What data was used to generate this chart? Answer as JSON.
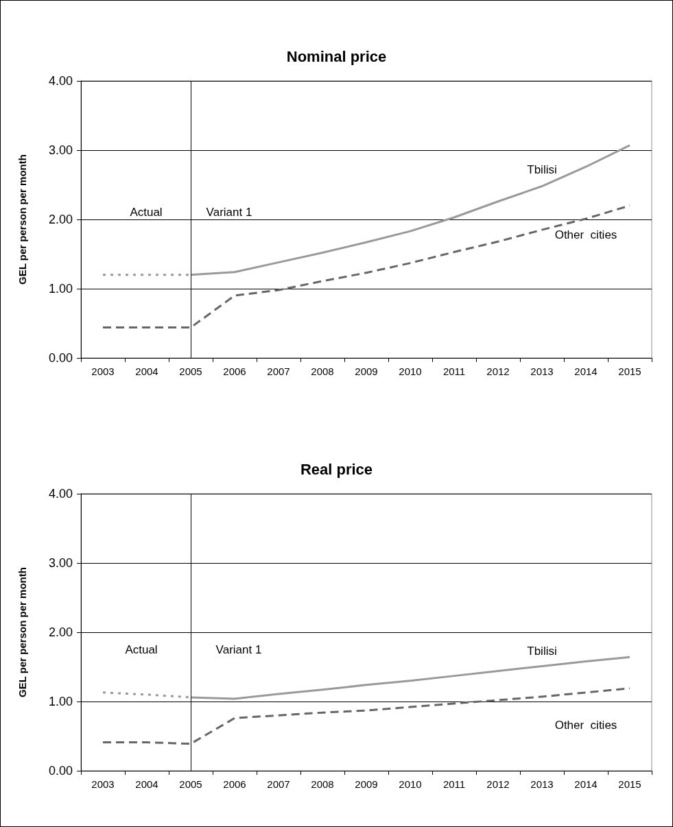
{
  "chart_data": [
    {
      "type": "line",
      "title": "Nominal price",
      "ylabel": "GEL per person per month",
      "categories": [
        "2003",
        "2004",
        "2005",
        "2006",
        "2007",
        "2008",
        "2009",
        "2010",
        "2011",
        "2012",
        "2013",
        "2014",
        "2015"
      ],
      "series": [
        {
          "color": "#999999",
          "line_style": "dotted",
          "values": [
            1.2,
            1.2,
            1.2,
            null,
            null,
            null,
            null,
            null,
            null,
            null,
            null,
            null,
            null
          ]
        },
        {
          "name": "Tbilisi",
          "color": "#999999",
          "line_style": "solid",
          "values": [
            null,
            null,
            1.2,
            1.24,
            1.38,
            1.52,
            1.67,
            1.83,
            2.03,
            2.26,
            2.48,
            2.76,
            3.07
          ]
        },
        {
          "name": "Other  cities",
          "color": "#666666",
          "line_style": "dashed",
          "values": [
            0.44,
            0.44,
            0.44,
            0.9,
            0.98,
            1.11,
            1.23,
            1.37,
            1.53,
            1.68,
            1.85,
            2.01,
            2.2
          ]
        }
      ],
      "ylim": [
        0,
        4
      ],
      "yticks": [
        {
          "value": 0,
          "label": "0.00"
        },
        {
          "value": 1,
          "label": "1.00"
        },
        {
          "value": 2,
          "label": "2.00"
        },
        {
          "value": 3,
          "label": "3.00"
        },
        {
          "value": 4,
          "label": "4.00"
        }
      ],
      "grid": "y",
      "marker": "none",
      "ref_lines": [
        {
          "axis": "x",
          "value": "2005",
          "color": "#000000"
        }
      ],
      "annotations": [
        "Actual",
        "Variant 1"
      ]
    },
    {
      "type": "line",
      "title": "Real price",
      "ylabel": "GEL per person per month",
      "categories": [
        "2003",
        "2004",
        "2005",
        "2006",
        "2007",
        "2008",
        "2009",
        "2010",
        "2011",
        "2012",
        "2013",
        "2014",
        "2015"
      ],
      "series": [
        {
          "color": "#999999",
          "line_style": "dotted",
          "values": [
            1.13,
            1.1,
            1.06,
            null,
            null,
            null,
            null,
            null,
            null,
            null,
            null,
            null,
            null
          ]
        },
        {
          "name": "Tbilisi",
          "color": "#999999",
          "line_style": "solid",
          "values": [
            null,
            null,
            1.06,
            1.04,
            1.11,
            1.17,
            1.24,
            1.3,
            1.37,
            1.44,
            1.51,
            1.58,
            1.64
          ]
        },
        {
          "name": "Other  cities",
          "color": "#666666",
          "line_style": "dashed",
          "values": [
            0.41,
            0.41,
            0.39,
            0.76,
            0.8,
            0.84,
            0.87,
            0.92,
            0.97,
            1.02,
            1.07,
            1.13,
            1.19
          ]
        }
      ],
      "ylim": [
        0,
        4
      ],
      "yticks": [
        {
          "value": 0,
          "label": "0.00"
        },
        {
          "value": 1,
          "label": "1.00"
        },
        {
          "value": 2,
          "label": "2.00"
        },
        {
          "value": 3,
          "label": "3.00"
        },
        {
          "value": 4,
          "label": "4.00"
        }
      ],
      "grid": "y",
      "marker": "none",
      "ref_lines": [
        {
          "axis": "x",
          "value": "2005",
          "color": "#000000"
        }
      ],
      "annotations": [
        "Actual",
        "Variant 1"
      ]
    }
  ]
}
